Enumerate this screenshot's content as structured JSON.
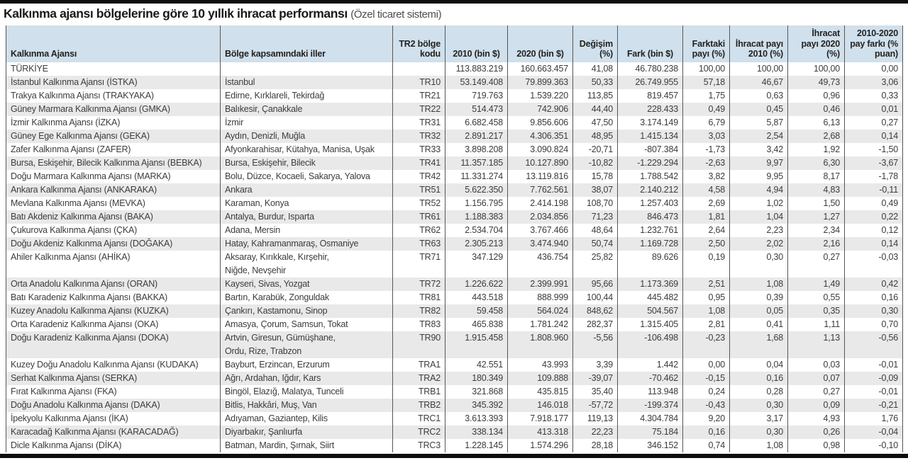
{
  "title": {
    "main": "Kalkınma ajansı bölgelerine göre 10 yıllık ihracat performansı",
    "note": "(Özel ticaret sistemi)"
  },
  "colors": {
    "header_bg": "#d0e0ec",
    "stripe_bg": "#e9e9e9",
    "border": "#565656",
    "rule": "#0d0d0d",
    "text": "#3c3c3c"
  },
  "chart_data": {
    "type": "table",
    "title": "Kalkınma ajansı bölgelerine göre 10 yıllık ihracat performansı",
    "subtitle": "(Özel ticaret sistemi)",
    "columns": [
      "Kalkınma Ajansı",
      "Bölge kapsamındaki iller",
      "TR2 bölge kodu",
      "2010 (bin $)",
      "2020 (bin $)",
      "Değişim (%)",
      "Fark (bin $)",
      "Farktaki payı (%)",
      "İhracat payı 2010 (%)",
      "İhracat payı 2020 (%)",
      "2010-2020 pay farkı (% puan)"
    ],
    "rows": [
      [
        "TÜRKİYE",
        "",
        "",
        "113.883.219",
        "160.663.457",
        "41,08",
        "46.780.238",
        "100,00",
        "100,00",
        "100,00",
        "0,00"
      ],
      [
        "İstanbul Kalkınma Ajansı (İSTKA)",
        "İstanbul",
        "TR10",
        "53.149.408",
        "79.899.363",
        "50,33",
        "26.749.955",
        "57,18",
        "46,67",
        "49,73",
        "3,06"
      ],
      [
        "Trakya Kalkınma Ajansı (TRAKYAKA)",
        "Edirne, Kırklareli, Tekirdağ",
        "TR21",
        "719.763",
        "1.539.220",
        "113,85",
        "819.457",
        "1,75",
        "0,63",
        "0,96",
        "0,33"
      ],
      [
        "Güney Marmara Kalkınma Ajansı (GMKA)",
        "Balıkesir, Çanakkale",
        "TR22",
        "514.473",
        "742.906",
        "44,40",
        "228.433",
        "0,49",
        "0,45",
        "0,46",
        "0,01"
      ],
      [
        "İzmir Kalkınma Ajansı (İZKA)",
        "İzmir",
        "TR31",
        "6.682.458",
        "9.856.606",
        "47,50",
        "3.174.149",
        "6,79",
        "5,87",
        "6,13",
        "0,27"
      ],
      [
        "Güney Ege Kalkınma Ajansı (GEKA)",
        "Aydın, Denizli, Muğla",
        "TR32",
        "2.891.217",
        "4.306.351",
        "48,95",
        "1.415.134",
        "3,03",
        "2,54",
        "2,68",
        "0,14"
      ],
      [
        "Zafer Kalkınma Ajansı (ZAFER)",
        "Afyonkarahisar, Kütahya, Manisa, Uşak",
        "TR33",
        "3.898.208",
        "3.090.824",
        "-20,71",
        "-807.384",
        "-1,73",
        "3,42",
        "1,92",
        "-1,50"
      ],
      [
        "Bursa, Eskişehir, Bilecik Kalkınma Ajansı (BEBKA)",
        "Bursa, Eskişehir, Bilecik",
        "TR41",
        "11.357.185",
        "10.127.890",
        "-10,82",
        "-1.229.294",
        "-2,63",
        "9,97",
        "6,30",
        "-3,67"
      ],
      [
        "Doğu Marmara Kalkınma Ajansı (MARKA)",
        "Bolu, Düzce, Kocaeli, Sakarya, Yalova",
        "TR42",
        "11.331.274",
        "13.119.816",
        "15,78",
        "1.788.542",
        "3,82",
        "9,95",
        "8,17",
        "-1,78"
      ],
      [
        "Ankara Kalkınma Ajansı (ANKARAKA)",
        "Ankara",
        "TR51",
        "5.622.350",
        "7.762.561",
        "38,07",
        "2.140.212",
        "4,58",
        "4,94",
        "4,83",
        "-0,11"
      ],
      [
        "Mevlana Kalkınma Ajansı (MEVKA)",
        "Karaman, Konya",
        "TR52",
        "1.156.795",
        "2.414.198",
        "108,70",
        "1.257.403",
        "2,69",
        "1,02",
        "1,50",
        "0,49"
      ],
      [
        "Batı Akdeniz Kalkınma Ajansı (BAKA)",
        "Antalya, Burdur, Isparta",
        "TR61",
        "1.188.383",
        "2.034.856",
        "71,23",
        "846.473",
        "1,81",
        "1,04",
        "1,27",
        "0,22"
      ],
      [
        "Çukurova Kalkınma Ajansı (ÇKA)",
        "Adana, Mersin",
        "TR62",
        "2.534.704",
        "3.767.466",
        "48,64",
        "1.232.761",
        "2,64",
        "2,23",
        "2,34",
        "0,12"
      ],
      [
        "Doğu Akdeniz Kalkınma Ajansı (DOĞAKA)",
        "Hatay, Kahramanmaraş, Osmaniye",
        "TR63",
        "2.305.213",
        "3.474.940",
        "50,74",
        "1.169.728",
        "2,50",
        "2,02",
        "2,16",
        "0,14"
      ],
      [
        "Ahiler Kalkınma Ajansı (AHİKA)",
        "Aksaray, Kırıkkale, Kırşehir,\nNiğde, Nevşehir",
        "TR71",
        "347.129",
        "436.754",
        "25,82",
        "89.626",
        "0,19",
        "0,30",
        "0,27",
        "-0,03"
      ],
      [
        "Orta Anadolu Kalkınma Ajansı (ORAN)",
        "Kayseri, Sivas, Yozgat",
        "TR72",
        "1.226.622",
        "2.399.991",
        "95,66",
        "1.173.369",
        "2,51",
        "1,08",
        "1,49",
        "0,42"
      ],
      [
        "Batı Karadeniz Kalkınma Ajansı (BAKKA)",
        "Bartın, Karabük, Zonguldak",
        "TR81",
        "443.518",
        "888.999",
        "100,44",
        "445.482",
        "0,95",
        "0,39",
        "0,55",
        "0,16"
      ],
      [
        "Kuzey Anadolu Kalkınma Ajansı (KUZKA)",
        "Çankırı, Kastamonu, Sinop",
        "TR82",
        "59.458",
        "564.024",
        "848,62",
        "504.567",
        "1,08",
        "0,05",
        "0,35",
        "0,30"
      ],
      [
        "Orta Karadeniz Kalkınma Ajansı (OKA)",
        "Amasya, Çorum, Samsun, Tokat",
        "TR83",
        "465.838",
        "1.781.242",
        "282,37",
        "1.315.405",
        "2,81",
        "0,41",
        "1,11",
        "0,70"
      ],
      [
        "Doğu Karadeniz Kalkınma Ajansı (DOKA)",
        "Artvin, Giresun, Gümüşhane,\nOrdu, Rize, Trabzon",
        "TR90",
        "1.915.458",
        "1.808.960",
        "-5,56",
        "-106.498",
        "-0,23",
        "1,68",
        "1,13",
        "-0,56"
      ],
      [
        "Kuzey Doğu Anadolu Kalkınma Ajansı (KUDAKA)",
        "Bayburt, Erzincan, Erzurum",
        "TRA1",
        "42.551",
        "43.993",
        "3,39",
        "1.442",
        "0,00",
        "0,04",
        "0,03",
        "-0,01"
      ],
      [
        "Serhat Kalkınma Ajansı (SERKA)",
        "Ağrı, Ardahan, Iğdır, Kars",
        "TRA2",
        "180.349",
        "109.888",
        "-39,07",
        "-70.462",
        "-0,15",
        "0,16",
        "0,07",
        "-0,09"
      ],
      [
        "Fırat Kalkınma Ajansı (FKA)",
        "Bingöl, Elazığ, Malatya, Tunceli",
        "TRB1",
        "321.868",
        "435.815",
        "35,40",
        "113.948",
        "0,24",
        "0,28",
        "0,27",
        "-0,01"
      ],
      [
        "Doğu Anadolu Kalkınma Ajansı (DAKA)",
        "Bitlis, Hakkâri, Muş, Van",
        "TRB2",
        "345.392",
        "146.018",
        "-57,72",
        "-199.374",
        "-0,43",
        "0,30",
        "0,09",
        "-0,21"
      ],
      [
        "İpekyolu Kalkınma Ajansı (İKA)",
        "Adıyaman, Gaziantep, Kilis",
        "TRC1",
        "3.613.393",
        "7.918.177",
        "119,13",
        "4.304.784",
        "9,20",
        "3,17",
        "4,93",
        "1,76"
      ],
      [
        "Karacadağ Kalkınma Ajansı (KARACADAĞ)",
        "Diyarbakır, Şanlıurfa",
        "TRC2",
        "338.134",
        "413.318",
        "22,23",
        "75.184",
        "0,16",
        "0,30",
        "0,26",
        "-0,04"
      ],
      [
        "Dicle Kalkınma Ajansı (DİKA)",
        "Batman, Mardin, Şırnak, Siirt",
        "TRC3",
        "1.228.145",
        "1.574.296",
        "28,18",
        "346.152",
        "0,74",
        "1,08",
        "0,98",
        "-0,10"
      ]
    ]
  }
}
